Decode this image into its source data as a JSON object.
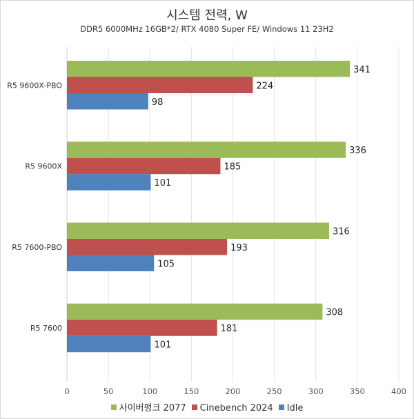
{
  "chart_data": {
    "type": "bar",
    "orientation": "horizontal",
    "title": "시스템 전력, W",
    "subtitle": "DDR5 6000MHz 16GB*2/ RTX 4080 Super FE/ Windows 11 23H2",
    "categories": [
      "R5 9600X-PBO",
      "R5 9600X",
      "R5 7600-PBO",
      "R5 7600"
    ],
    "series": [
      {
        "name": "사이버펑크 2077",
        "color": "#9bbb59",
        "values": [
          341,
          336,
          316,
          308
        ]
      },
      {
        "name": "Cinebench 2024",
        "color": "#c0504d",
        "values": [
          224,
          185,
          193,
          181
        ]
      },
      {
        "name": "Idle",
        "color": "#4f81bd",
        "values": [
          98,
          101,
          105,
          101
        ]
      }
    ],
    "xlim": [
      0,
      400
    ],
    "xticks": [
      0,
      50,
      100,
      150,
      200,
      250,
      300,
      350,
      400
    ],
    "grid": true,
    "legend": "bottom"
  }
}
